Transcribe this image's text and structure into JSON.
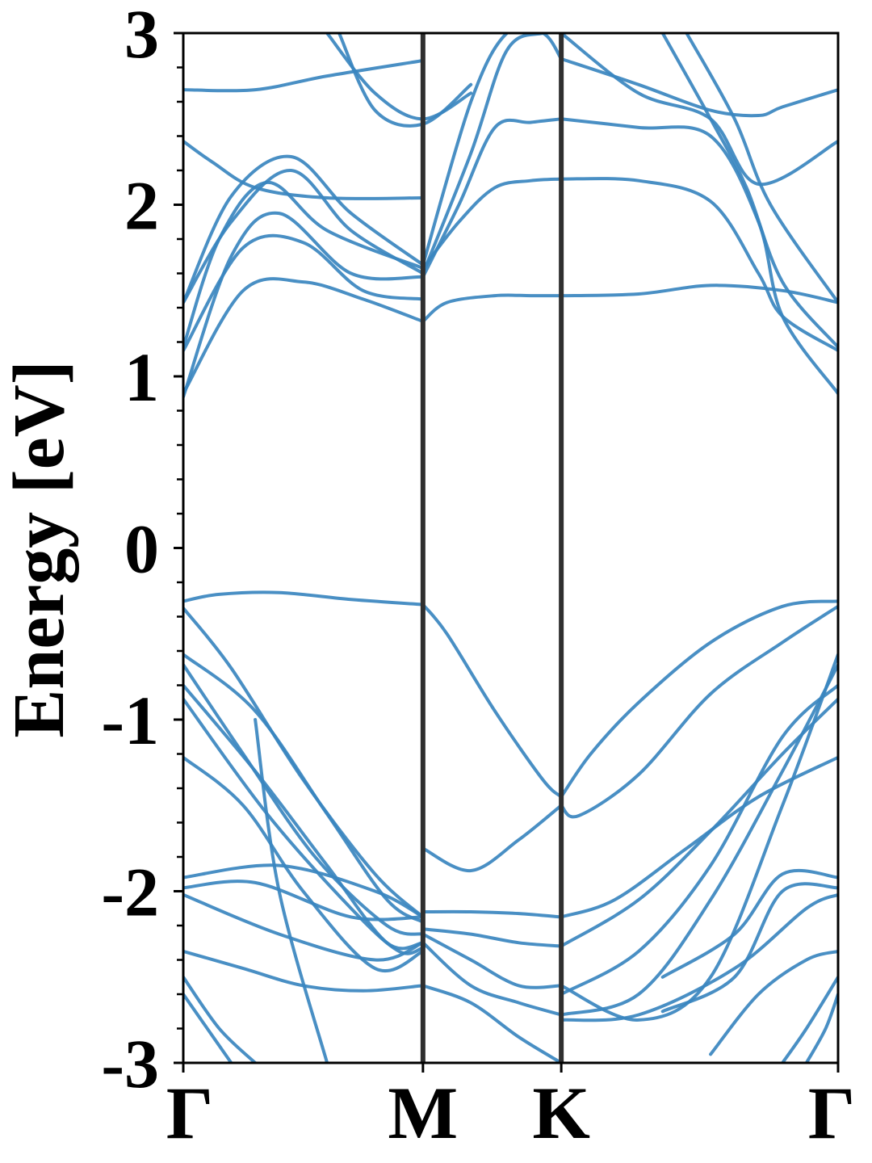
{
  "chart_data": {
    "type": "line",
    "title": "",
    "xlabel": "",
    "ylabel": "Energy [eV]",
    "ylim": [
      -3,
      3
    ],
    "yticks": [
      "3",
      "2",
      "1",
      "0",
      "-1",
      "-2",
      "-3"
    ],
    "ytick_values": [
      3,
      2,
      1,
      0,
      -1,
      -2,
      -3
    ],
    "kpoint_labels": [
      "Γ",
      "M",
      "K",
      "Γ"
    ],
    "kpoint_positions": [
      0,
      1.0,
      1.577,
      2.732
    ],
    "vertical_lines_at": [
      1.0,
      1.577
    ],
    "grid": false,
    "legend": "none",
    "line_color": "#3a85bf",
    "divider_color": "#2f2f2f",
    "series": [
      {
        "x": [
          0,
          0.15,
          0.4,
          0.7,
          1.0
        ],
        "y": [
          -0.31,
          -0.27,
          -0.26,
          -0.3,
          -0.33
        ]
      },
      {
        "x": [
          1.0,
          1.1,
          1.3,
          1.5,
          1.577
        ],
        "y": [
          -0.33,
          -0.5,
          -0.95,
          -1.35,
          -1.45
        ]
      },
      {
        "x": [
          1.577,
          1.7,
          1.9,
          2.2,
          2.5,
          2.732
        ],
        "y": [
          -1.45,
          -1.2,
          -0.9,
          -0.55,
          -0.34,
          -0.31
        ]
      },
      {
        "x": [
          1.577,
          1.65,
          1.9,
          2.2,
          2.5,
          2.732
        ],
        "y": [
          -1.5,
          -1.56,
          -1.32,
          -0.85,
          -0.55,
          -0.34
        ]
      },
      {
        "x": [
          0,
          0.2,
          0.5,
          0.8,
          1.0
        ],
        "y": [
          -0.35,
          -0.7,
          -1.35,
          -1.9,
          -2.15
        ]
      },
      {
        "x": [
          0,
          0.3,
          0.6,
          0.85,
          1.0
        ],
        "y": [
          -0.62,
          -0.95,
          -1.55,
          -2.05,
          -2.18
        ]
      },
      {
        "x": [
          0,
          0.25,
          0.55,
          0.85,
          1.0
        ],
        "y": [
          -0.68,
          -1.2,
          -1.8,
          -2.2,
          -2.25
        ]
      },
      {
        "x": [
          0,
          0.3,
          0.6,
          0.85,
          1.0
        ],
        "y": [
          -0.8,
          -1.3,
          -1.85,
          -2.3,
          -2.3
        ]
      },
      {
        "x": [
          0,
          0.35,
          0.7,
          0.9,
          1.0
        ],
        "y": [
          -0.88,
          -1.55,
          -2.1,
          -2.35,
          -2.33
        ]
      },
      {
        "x": [
          0,
          0.25,
          0.5,
          0.8,
          1.0
        ],
        "y": [
          -1.22,
          -1.5,
          -2.0,
          -2.45,
          -2.35
        ]
      },
      {
        "x": [
          0,
          0.4,
          0.8,
          1.0
        ],
        "y": [
          -1.92,
          -1.85,
          -2.0,
          -2.15
        ]
      },
      {
        "x": [
          0,
          0.3,
          0.7,
          1.0
        ],
        "y": [
          -1.98,
          -1.95,
          -2.15,
          -2.15
        ]
      },
      {
        "x": [
          0,
          0.4,
          0.8,
          1.0
        ],
        "y": [
          -2.02,
          -2.25,
          -2.4,
          -2.3
        ]
      },
      {
        "x": [
          0,
          0.25,
          0.5,
          0.75,
          1.0
        ],
        "y": [
          -2.35,
          -2.45,
          -2.55,
          -2.58,
          -2.55
        ]
      },
      {
        "x": [
          1.0,
          1.2,
          1.4,
          1.577
        ],
        "y": [
          -1.75,
          -1.88,
          -1.7,
          -1.5
        ]
      },
      {
        "x": [
          1.0,
          1.2,
          1.4,
          1.577
        ],
        "y": [
          -2.12,
          -2.12,
          -2.13,
          -2.15
        ]
      },
      {
        "x": [
          1.0,
          1.2,
          1.4,
          1.577
        ],
        "y": [
          -2.22,
          -2.25,
          -2.3,
          -2.32
        ]
      },
      {
        "x": [
          1.0,
          1.2,
          1.4,
          1.577
        ],
        "y": [
          -2.25,
          -2.4,
          -2.55,
          -2.55
        ]
      },
      {
        "x": [
          1.0,
          1.2,
          1.4,
          1.577
        ],
        "y": [
          -2.3,
          -2.55,
          -2.65,
          -2.72
        ]
      },
      {
        "x": [
          1.0,
          1.2,
          1.4,
          1.577
        ],
        "y": [
          -2.55,
          -2.65,
          -2.85,
          -3.0
        ]
      },
      {
        "x": [
          1.577,
          1.8,
          2.1,
          2.4,
          2.732
        ],
        "y": [
          -2.15,
          -2.05,
          -1.75,
          -1.45,
          -1.22
        ]
      },
      {
        "x": [
          1.577,
          1.9,
          2.2,
          2.5,
          2.732
        ],
        "y": [
          -2.32,
          -2.05,
          -1.65,
          -1.2,
          -0.88
        ]
      },
      {
        "x": [
          1.577,
          1.9,
          2.2,
          2.5,
          2.732
        ],
        "y": [
          -2.6,
          -2.35,
          -1.85,
          -1.1,
          -0.8
        ]
      },
      {
        "x": [
          1.577,
          1.9,
          2.2,
          2.5,
          2.732
        ],
        "y": [
          -2.72,
          -2.6,
          -2.05,
          -1.3,
          -0.68
        ]
      },
      {
        "x": [
          1.577,
          1.9,
          2.2,
          2.5,
          2.732
        ],
        "y": [
          -2.55,
          -2.75,
          -2.5,
          -1.5,
          -0.62
        ]
      },
      {
        "x": [
          1.577,
          1.9,
          2.3,
          2.6,
          2.732
        ],
        "y": [
          -2.75,
          -2.72,
          -2.45,
          -2.1,
          -2.02
        ]
      },
      {
        "x": [
          2.0,
          2.3,
          2.5,
          2.732
        ],
        "y": [
          -2.5,
          -2.25,
          -1.9,
          -1.92
        ]
      },
      {
        "x": [
          2.0,
          2.3,
          2.5,
          2.732
        ],
        "y": [
          -2.7,
          -2.5,
          -2.0,
          -1.98
        ]
      },
      {
        "x": [
          2.2,
          2.4,
          2.6,
          2.732
        ],
        "y": [
          -2.95,
          -2.6,
          -2.4,
          -2.35
        ]
      },
      {
        "x": [
          0,
          0.15,
          0.3
        ],
        "y": [
          -2.5,
          -2.8,
          -3.0
        ]
      },
      {
        "x": [
          0,
          0.1,
          0.2
        ],
        "y": [
          -2.6,
          -2.8,
          -3.0
        ]
      },
      {
        "x": [
          0.3,
          0.4,
          0.6
        ],
        "y": [
          -1.0,
          -2.0,
          -3.0
        ]
      },
      {
        "x": [
          2.5,
          2.6,
          2.732
        ],
        "y": [
          -3.0,
          -2.8,
          -2.5
        ]
      },
      {
        "x": [
          2.6,
          2.68,
          2.732
        ],
        "y": [
          -3.0,
          -2.8,
          -2.6
        ]
      },
      {
        "x": [
          0,
          0.25,
          0.5,
          0.75,
          1.0
        ],
        "y": [
          0.9,
          1.5,
          1.55,
          1.45,
          1.32
        ]
      },
      {
        "x": [
          0,
          0.25,
          0.5,
          0.75,
          1.0
        ],
        "y": [
          1.15,
          1.75,
          1.78,
          1.5,
          1.45
        ]
      },
      {
        "x": [
          0,
          0.2,
          0.4,
          0.7,
          1.0
        ],
        "y": [
          0.88,
          1.7,
          1.95,
          1.6,
          1.58
        ]
      },
      {
        "x": [
          0,
          0.15,
          0.35,
          0.6,
          1.0
        ],
        "y": [
          1.17,
          1.8,
          2.13,
          1.85,
          1.63
        ]
      },
      {
        "x": [
          0,
          0.2,
          0.45,
          0.7,
          1.0
        ],
        "y": [
          1.43,
          1.9,
          2.2,
          1.85,
          1.6
        ]
      },
      {
        "x": [
          0,
          0.2,
          0.45,
          0.7,
          1.0
        ],
        "y": [
          1.43,
          2.05,
          2.28,
          1.95,
          1.65
        ]
      },
      {
        "x": [
          0,
          0.12,
          0.3,
          0.6,
          1.0
        ],
        "y": [
          2.37,
          2.25,
          2.1,
          2.04,
          2.04
        ]
      },
      {
        "x": [
          0,
          0.3,
          0.6,
          1.0
        ],
        "y": [
          2.67,
          2.67,
          2.75,
          2.84
        ]
      },
      {
        "x": [
          0.6,
          0.8,
          1.0,
          1.2
        ],
        "y": [
          3.0,
          2.65,
          2.5,
          2.65
        ]
      },
      {
        "x": [
          0.65,
          0.8,
          1.0,
          1.2
        ],
        "y": [
          3.0,
          2.55,
          2.47,
          2.7
        ]
      },
      {
        "x": [
          1.0,
          1.1,
          1.3,
          1.45,
          1.577
        ],
        "y": [
          1.32,
          1.43,
          1.47,
          1.47,
          1.47
        ]
      },
      {
        "x": [
          1.577,
          1.9,
          2.2,
          2.5,
          2.732
        ],
        "y": [
          1.47,
          1.48,
          1.53,
          1.5,
          1.43
        ]
      },
      {
        "x": [
          1.0,
          1.15,
          1.3,
          1.45,
          1.577
        ],
        "y": [
          1.58,
          2.0,
          2.45,
          2.48,
          2.5
        ]
      },
      {
        "x": [
          1.0,
          1.15,
          1.3,
          1.45,
          1.577
        ],
        "y": [
          1.63,
          1.9,
          2.1,
          2.14,
          2.15
        ]
      },
      {
        "x": [
          1.577,
          1.9,
          2.2,
          2.4,
          2.5,
          2.732
        ],
        "y": [
          2.15,
          2.14,
          2.02,
          1.6,
          1.35,
          1.15
        ]
      },
      {
        "x": [
          1.577,
          1.9,
          2.2,
          2.4,
          2.5,
          2.732
        ],
        "y": [
          2.5,
          2.45,
          2.4,
          1.9,
          1.35,
          0.9
        ]
      },
      {
        "x": [
          1.0,
          1.2,
          1.35,
          1.5,
          1.577
        ],
        "y": [
          1.6,
          2.3,
          2.9,
          3.0,
          3.0
        ]
      },
      {
        "x": [
          1.0,
          1.2,
          1.35,
          1.5,
          1.577
        ],
        "y": [
          1.65,
          2.6,
          3.0,
          3.0,
          2.85
        ]
      },
      {
        "x": [
          1.577,
          1.9,
          2.2,
          2.4,
          2.5,
          2.732
        ],
        "y": [
          2.85,
          2.7,
          2.55,
          2.52,
          2.57,
          2.67
        ]
      },
      {
        "x": [
          1.577,
          1.9,
          2.2,
          2.4,
          2.732
        ],
        "y": [
          3.0,
          2.65,
          2.5,
          2.12,
          2.37
        ]
      },
      {
        "x": [
          2.0,
          2.2,
          2.35,
          2.5,
          2.732
        ],
        "y": [
          3.0,
          2.5,
          2.1,
          1.55,
          1.17
        ]
      },
      {
        "x": [
          2.1,
          2.3,
          2.45,
          2.732
        ],
        "y": [
          3.0,
          2.5,
          2.0,
          1.43
        ]
      }
    ]
  }
}
